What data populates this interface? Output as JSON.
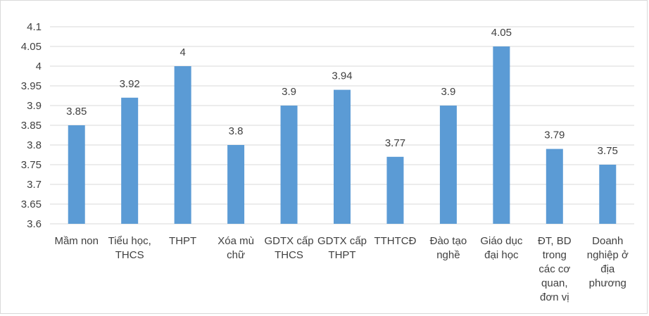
{
  "chart_data": {
    "type": "bar",
    "categories": [
      "Mầm non",
      "Tiểu học, THCS",
      "THPT",
      "Xóa mù chữ",
      "GDTX cấp THCS",
      "GDTX cấp THPT",
      "TTHTCĐ",
      "Đào tạo nghề",
      "Giáo dục đại học",
      "ĐT, BD trong các cơ quan, đơn vị",
      "Doanh nghiệp ở địa phương"
    ],
    "category_lines": [
      [
        "Mầm non"
      ],
      [
        "Tiểu học,",
        "THCS"
      ],
      [
        "THPT"
      ],
      [
        "Xóa mù",
        "chữ"
      ],
      [
        "GDTX cấp",
        "THCS"
      ],
      [
        "GDTX cấp",
        "THPT"
      ],
      [
        "TTHTCĐ"
      ],
      [
        "Đào tạo",
        "nghề"
      ],
      [
        "Giáo dục",
        "đại học"
      ],
      [
        "ĐT, BD",
        "trong",
        "các cơ",
        "quan,",
        "đơn vị"
      ],
      [
        "Doanh",
        "nghiệp ở",
        "địa",
        "phương"
      ]
    ],
    "values": [
      3.85,
      3.92,
      4,
      3.8,
      3.9,
      3.94,
      3.77,
      3.9,
      4.05,
      3.79,
      3.75
    ],
    "value_labels": [
      "3.85",
      "3.92",
      "4",
      "3.8",
      "3.9",
      "3.94",
      "3.77",
      "3.9",
      "4.05",
      "3.79",
      "3.75"
    ],
    "y_ticks": [
      "3.6",
      "3.65",
      "3.7",
      "3.75",
      "3.8",
      "3.85",
      "3.9",
      "3.95",
      "4",
      "4.05",
      "4.1"
    ],
    "ylim": [
      3.6,
      4.1
    ],
    "grid": true,
    "legend": "none",
    "bar_color": "#5b9bd5",
    "grid_color": "#d9d9d9"
  }
}
